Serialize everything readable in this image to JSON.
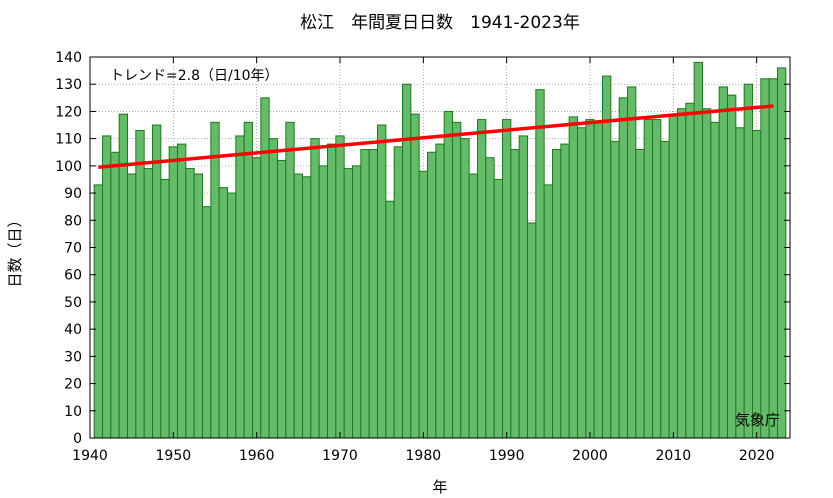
{
  "chart_data": {
    "type": "bar",
    "title": "松江　年間夏日日数　1941-2023年",
    "xlabel": "年",
    "ylabel": "日数（日）",
    "annotation": "トレンド=2.8（日/10年）",
    "credit": "気象庁",
    "xlim": [
      1940,
      2024
    ],
    "ylim": [
      0,
      140
    ],
    "x_ticks": [
      1940,
      1950,
      1960,
      1970,
      1980,
      1990,
      2000,
      2010,
      2020
    ],
    "y_ticks": [
      0,
      10,
      20,
      30,
      40,
      50,
      60,
      70,
      80,
      90,
      100,
      110,
      120,
      130,
      140
    ],
    "grid": true,
    "bar_color": "#66bb6a",
    "bar_edge_color": "#1b7a1b",
    "trend_color": "#ff0000",
    "trend": {
      "x": [
        1941,
        2022
      ],
      "y": [
        99.5,
        122
      ]
    },
    "x": [
      1941,
      1942,
      1943,
      1944,
      1945,
      1946,
      1947,
      1948,
      1949,
      1950,
      1951,
      1952,
      1953,
      1954,
      1955,
      1956,
      1957,
      1958,
      1959,
      1960,
      1961,
      1962,
      1963,
      1964,
      1965,
      1966,
      1967,
      1968,
      1969,
      1970,
      1971,
      1972,
      1973,
      1974,
      1975,
      1976,
      1977,
      1978,
      1979,
      1980,
      1981,
      1982,
      1983,
      1984,
      1985,
      1986,
      1987,
      1988,
      1989,
      1990,
      1991,
      1992,
      1993,
      1994,
      1995,
      1996,
      1997,
      1998,
      1999,
      2000,
      2001,
      2002,
      2003,
      2004,
      2005,
      2006,
      2007,
      2008,
      2009,
      2010,
      2011,
      2012,
      2013,
      2014,
      2015,
      2016,
      2017,
      2018,
      2019,
      2020,
      2021,
      2022,
      2023
    ],
    "values": [
      93,
      111,
      105,
      119,
      97,
      113,
      99,
      115,
      95,
      107,
      108,
      99,
      97,
      85,
      116,
      92,
      90,
      111,
      116,
      103,
      125,
      110,
      102,
      116,
      97,
      96,
      110,
      100,
      108,
      111,
      99,
      100,
      106,
      106,
      115,
      87,
      107,
      130,
      119,
      98,
      105,
      108,
      120,
      116,
      110,
      97,
      117,
      103,
      95,
      117,
      106,
      111,
      79,
      128,
      93,
      106,
      108,
      118,
      114,
      117,
      116,
      133,
      109,
      125,
      129,
      106,
      117,
      117,
      109,
      119,
      121,
      123,
      138,
      121,
      116,
      129,
      126,
      114,
      130,
      113,
      132,
      132,
      136
    ]
  }
}
